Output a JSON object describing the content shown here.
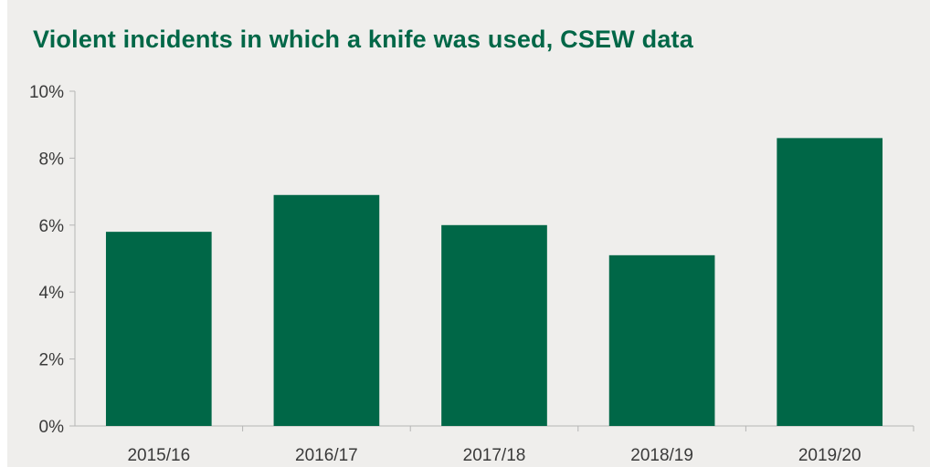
{
  "chart_data": {
    "type": "bar",
    "title": "Violent incidents in which a knife was used, CSEW data",
    "xlabel": "",
    "ylabel": "",
    "categories": [
      "2015/16",
      "2016/17",
      "2017/18",
      "2018/19",
      "2019/20"
    ],
    "values": [
      5.8,
      6.9,
      6.0,
      5.1,
      8.6
    ],
    "ylim": [
      0,
      10
    ],
    "yticks": [
      0,
      2,
      4,
      6,
      8,
      10
    ],
    "ytick_labels": [
      "0%",
      "2%",
      "4%",
      "6%",
      "8%",
      "10%"
    ],
    "grid": false,
    "bar_color": "#006747",
    "axis_color": "#b5b5b5"
  }
}
